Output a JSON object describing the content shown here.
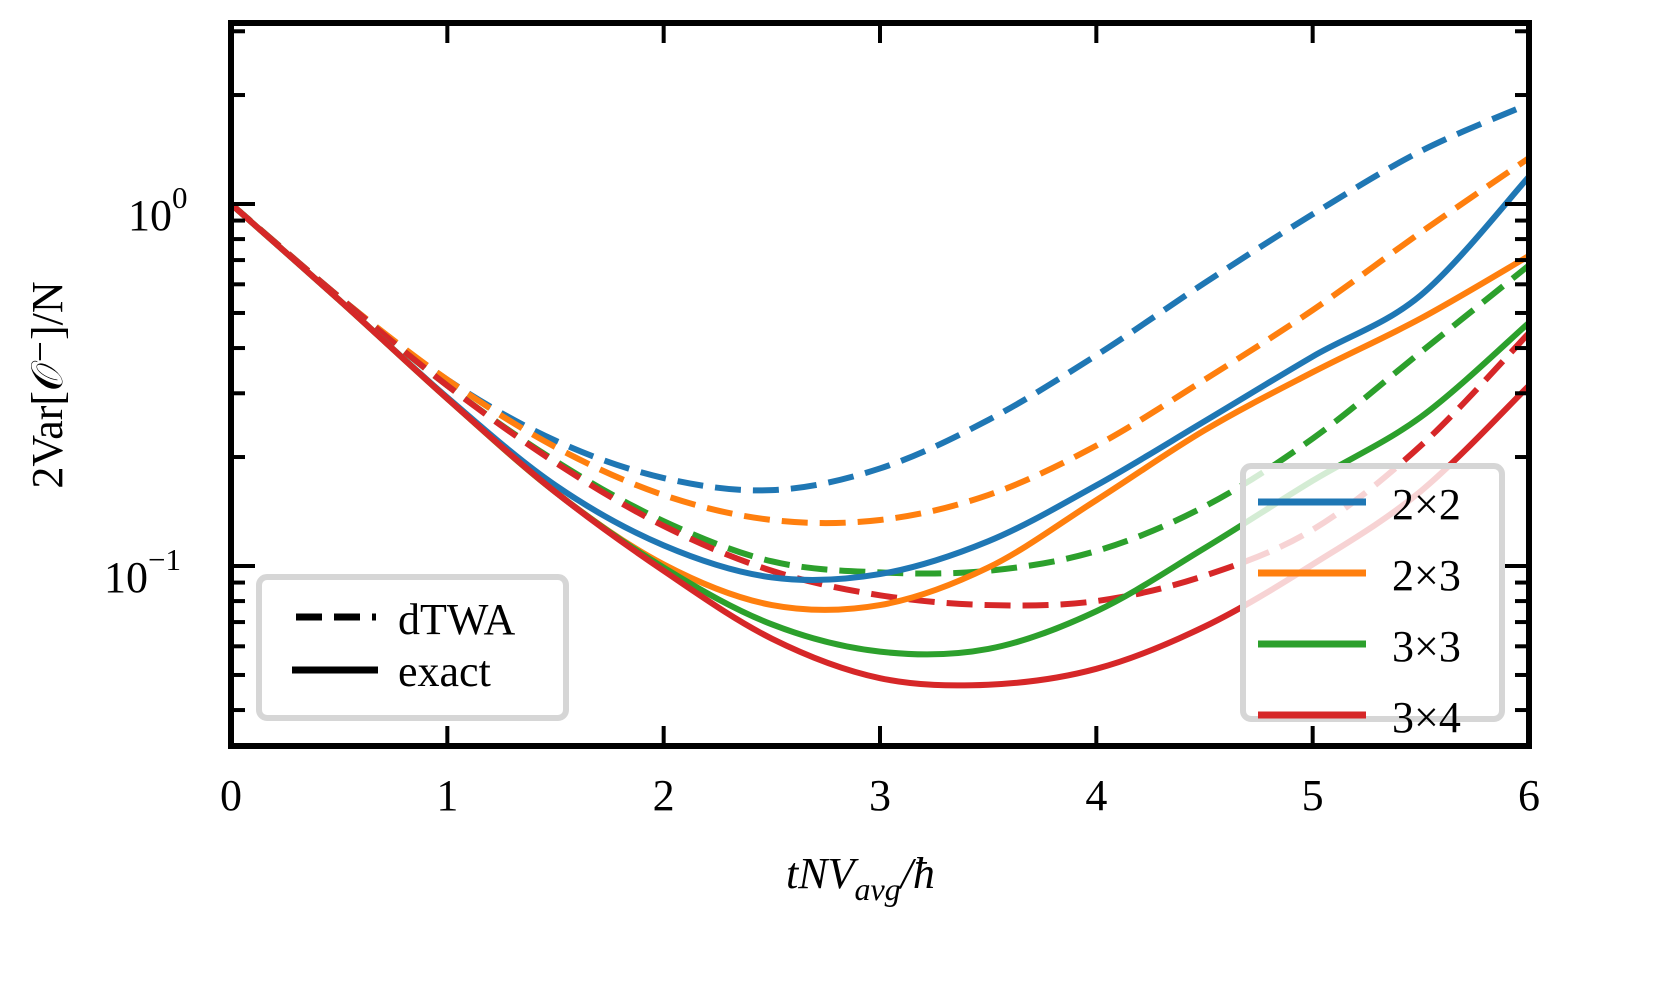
{
  "chart_data": {
    "type": "line",
    "title": "",
    "xlabel": "tNV_avg/ħ",
    "ylabel": "2Var[𝒪⁻]/N",
    "xscale": "linear",
    "yscale": "log",
    "xlim": [
      0,
      6
    ],
    "ylim": [
      0.032,
      3.16
    ],
    "x_ticks": [
      "0",
      "1",
      "2",
      "3",
      "4",
      "5",
      "6"
    ],
    "y_ticks": [
      "10^0",
      "10^-1"
    ],
    "grid": false,
    "x": [
      0,
      0.5,
      1,
      1.5,
      2,
      2.5,
      3,
      3.5,
      4,
      4.5,
      5,
      5.5,
      6
    ],
    "series": [
      {
        "name": "2×2",
        "method": "exact",
        "color": "#1f77b4",
        "linestyle": "solid",
        "values": [
          1.0,
          0.543,
          0.292,
          0.167,
          0.114,
          0.093,
          0.095,
          0.117,
          0.167,
          0.251,
          0.379,
          0.56,
          1.19
        ]
      },
      {
        "name": "2×2",
        "method": "dTWA",
        "color": "#1f77b4",
        "linestyle": "dashed",
        "values": [
          1.0,
          0.553,
          0.327,
          0.222,
          0.175,
          0.162,
          0.186,
          0.253,
          0.382,
          0.605,
          0.937,
          1.4,
          1.89
        ]
      },
      {
        "name": "2×3",
        "method": "exact",
        "color": "#ff7f0e",
        "linestyle": "solid",
        "values": [
          1.0,
          0.543,
          0.29,
          0.16,
          0.101,
          0.078,
          0.078,
          0.099,
          0.152,
          0.237,
          0.343,
          0.483,
          0.719
        ]
      },
      {
        "name": "2×3",
        "method": "dTWA",
        "color": "#ff7f0e",
        "linestyle": "dashed",
        "values": [
          1.0,
          0.553,
          0.327,
          0.213,
          0.157,
          0.134,
          0.134,
          0.157,
          0.215,
          0.327,
          0.509,
          0.835,
          1.34
        ]
      },
      {
        "name": "3×3",
        "method": "exact",
        "color": "#2ca02c",
        "linestyle": "solid",
        "values": [
          1.0,
          0.543,
          0.29,
          0.16,
          0.099,
          0.069,
          0.058,
          0.059,
          0.075,
          0.112,
          0.172,
          0.258,
          0.47
        ]
      },
      {
        "name": "3×3",
        "method": "dTWA",
        "color": "#2ca02c",
        "linestyle": "dashed",
        "values": [
          1.0,
          0.553,
          0.315,
          0.195,
          0.133,
          0.103,
          0.096,
          0.097,
          0.11,
          0.146,
          0.225,
          0.39,
          0.677
        ]
      },
      {
        "name": "3×4",
        "method": "exact",
        "color": "#d62728",
        "linestyle": "solid",
        "values": [
          1.0,
          0.543,
          0.29,
          0.16,
          0.097,
          0.063,
          0.049,
          0.047,
          0.052,
          0.068,
          0.101,
          0.161,
          0.315
        ]
      },
      {
        "name": "3×4",
        "method": "dTWA",
        "color": "#d62728",
        "linestyle": "dashed",
        "values": [
          1.0,
          0.553,
          0.315,
          0.193,
          0.129,
          0.097,
          0.083,
          0.078,
          0.08,
          0.094,
          0.126,
          0.215,
          0.44
        ]
      }
    ],
    "legends": [
      {
        "position": "lower left",
        "entries": [
          {
            "label": "dTWA",
            "linestyle": "dashed",
            "color": "#000000"
          },
          {
            "label": "exact",
            "linestyle": "solid",
            "color": "#000000"
          }
        ]
      },
      {
        "position": "lower right",
        "entries": [
          {
            "label": "2×2",
            "color": "#1f77b4"
          },
          {
            "label": "2×3",
            "color": "#ff7f0e"
          },
          {
            "label": "3×3",
            "color": "#2ca02c"
          },
          {
            "label": "3×4",
            "color": "#d62728"
          }
        ]
      }
    ]
  },
  "labels": {
    "x_axis": {
      "t": "tNV",
      "sub": "avg",
      "tail": "/ħ"
    },
    "y_axis": "2Var[𝒪⁻]/N",
    "x_ticks": [
      "0",
      "1",
      "2",
      "3",
      "4",
      "5",
      "6"
    ],
    "y_tick_1": {
      "base": "10",
      "exp": "0"
    },
    "y_tick_2": {
      "base": "10",
      "exp": "−1"
    },
    "legend_style": {
      "dashed": "dTWA",
      "solid": "exact"
    },
    "legend_size": [
      "2×2",
      "2×3",
      "3×3",
      "3×4"
    ]
  }
}
